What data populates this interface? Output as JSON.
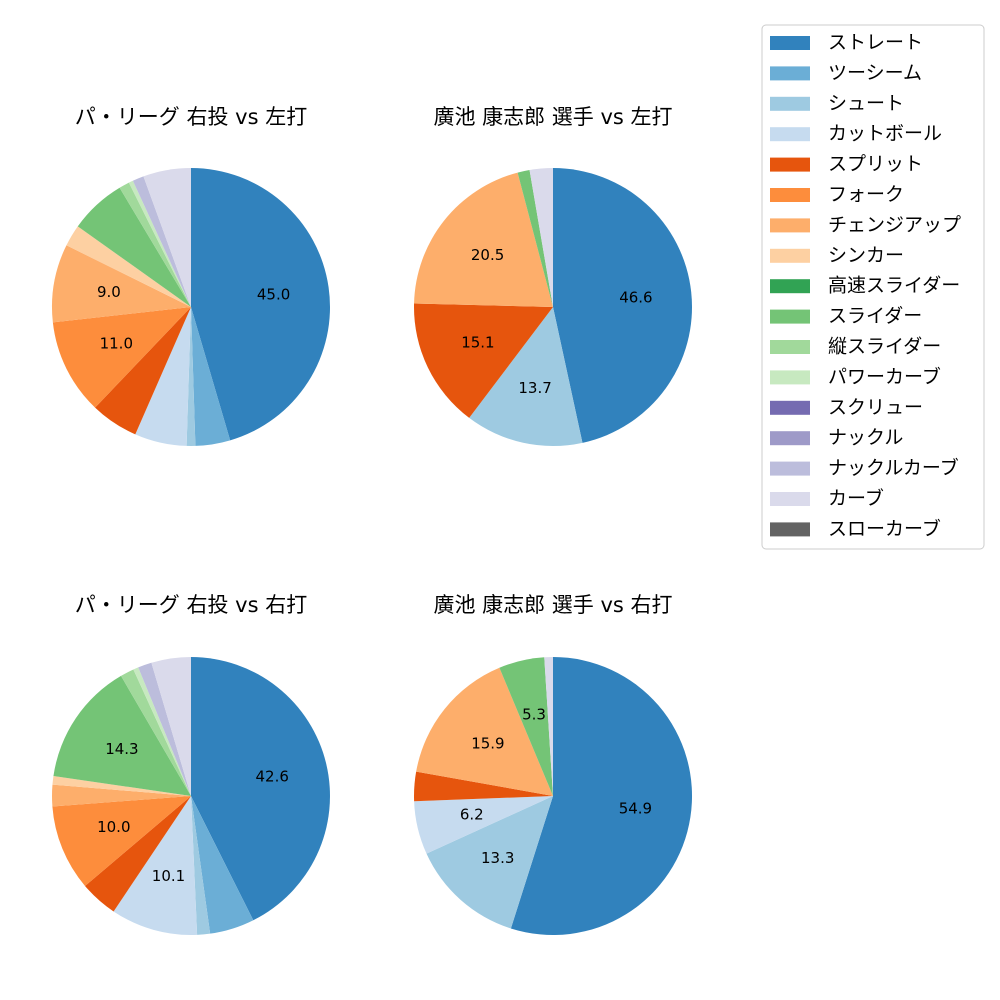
{
  "legend": {
    "items": [
      {
        "label": "ストレート",
        "color": "#3182bd"
      },
      {
        "label": "ツーシーム",
        "color": "#6baed6"
      },
      {
        "label": "シュート",
        "color": "#9ecae1"
      },
      {
        "label": "カットボール",
        "color": "#c6dbef"
      },
      {
        "label": "スプリット",
        "color": "#e6550d"
      },
      {
        "label": "フォーク",
        "color": "#fd8d3c"
      },
      {
        "label": "チェンジアップ",
        "color": "#fdae6b"
      },
      {
        "label": "シンカー",
        "color": "#fdd0a2"
      },
      {
        "label": "高速スライダー",
        "color": "#31a354"
      },
      {
        "label": "スライダー",
        "color": "#74c476"
      },
      {
        "label": "縦スライダー",
        "color": "#a1d99b"
      },
      {
        "label": "パワーカーブ",
        "color": "#c7e9c0"
      },
      {
        "label": "スクリュー",
        "color": "#756bb1"
      },
      {
        "label": "ナックル",
        "color": "#9e9ac8"
      },
      {
        "label": "ナックルカーブ",
        "color": "#bcbddc"
      },
      {
        "label": "カーブ",
        "color": "#dadaeb"
      },
      {
        "label": "スローカーブ",
        "color": "#636363"
      }
    ]
  },
  "chart_data": [
    {
      "type": "pie",
      "title": "パ・リーグ 右投 vs 左打",
      "slices": [
        {
          "label": "ストレート",
          "value": 45.0,
          "label_text": "45.0"
        },
        {
          "label": "ツーシーム",
          "value": 4.0
        },
        {
          "label": "シュート",
          "value": 1.0
        },
        {
          "label": "カットボール",
          "value": 6.0
        },
        {
          "label": "スプリット",
          "value": 5.5
        },
        {
          "label": "フォーク",
          "value": 11.0,
          "label_text": "11.0"
        },
        {
          "label": "チェンジアップ",
          "value": 9.0,
          "label_text": "9.0"
        },
        {
          "label": "シンカー",
          "value": 2.5
        },
        {
          "label": "スライダー",
          "value": 6.5
        },
        {
          "label": "縦スライダー",
          "value": 1.2
        },
        {
          "label": "パワーカーブ",
          "value": 0.5
        },
        {
          "label": "ナックルカーブ",
          "value": 1.3
        },
        {
          "label": "カーブ",
          "value": 5.5
        }
      ]
    },
    {
      "type": "pie",
      "title": "廣池 康志郎 選手 vs 左打",
      "slices": [
        {
          "label": "ストレート",
          "value": 46.6,
          "label_text": "46.6"
        },
        {
          "label": "シュート",
          "value": 13.7,
          "label_text": "13.7"
        },
        {
          "label": "スプリット",
          "value": 15.1,
          "label_text": "15.1"
        },
        {
          "label": "チェンジアップ",
          "value": 20.5,
          "label_text": "20.5"
        },
        {
          "label": "スライダー",
          "value": 1.4
        },
        {
          "label": "カーブ",
          "value": 2.7
        }
      ]
    },
    {
      "type": "pie",
      "title": "パ・リーグ 右投 vs 右打",
      "slices": [
        {
          "label": "ストレート",
          "value": 42.6,
          "label_text": "42.6"
        },
        {
          "label": "ツーシーム",
          "value": 5.2
        },
        {
          "label": "シュート",
          "value": 1.5
        },
        {
          "label": "カットボール",
          "value": 10.1,
          "label_text": "10.1"
        },
        {
          "label": "スプリット",
          "value": 4.4
        },
        {
          "label": "フォーク",
          "value": 10.0,
          "label_text": "10.0"
        },
        {
          "label": "チェンジアップ",
          "value": 2.5
        },
        {
          "label": "シンカー",
          "value": 1.0
        },
        {
          "label": "スライダー",
          "value": 14.3,
          "label_text": "14.3"
        },
        {
          "label": "縦スライダー",
          "value": 1.6
        },
        {
          "label": "パワーカーブ",
          "value": 0.6
        },
        {
          "label": "ナックルカーブ",
          "value": 1.6
        },
        {
          "label": "カーブ",
          "value": 4.6
        }
      ]
    },
    {
      "type": "pie",
      "title": "廣池 康志郎 選手 vs 右打",
      "slices": [
        {
          "label": "ストレート",
          "value": 54.9,
          "label_text": "54.9"
        },
        {
          "label": "シュート",
          "value": 13.3,
          "label_text": "13.3"
        },
        {
          "label": "カットボール",
          "value": 6.2,
          "label_text": "6.2"
        },
        {
          "label": "スプリット",
          "value": 3.4
        },
        {
          "label": "チェンジアップ",
          "value": 15.9,
          "label_text": "15.9"
        },
        {
          "label": "スライダー",
          "value": 5.3,
          "label_text": "5.3"
        },
        {
          "label": "カーブ",
          "value": 1.0
        }
      ]
    }
  ]
}
